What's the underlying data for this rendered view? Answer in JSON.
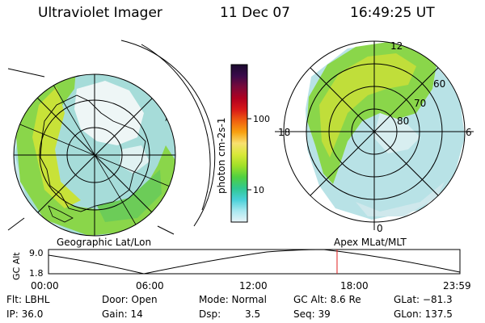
{
  "header": {
    "instrument": "Ultraviolet Imager",
    "date": "11 Dec 07",
    "time": "16:49:25 UT"
  },
  "colorbar": {
    "unit_label": "photon cm-2s-1",
    "ticks": [
      {
        "label": "100",
        "value": 100
      },
      {
        "label": "10",
        "value": 10
      }
    ],
    "colors": [
      "#1a0a2e",
      "#3a0a4a",
      "#7a0a3a",
      "#b00020",
      "#d81818",
      "#f06010",
      "#f8a010",
      "#f8e070",
      "#d8e838",
      "#a0e028",
      "#50d040",
      "#30c890",
      "#48d0d8",
      "#a8e8f0",
      "#e8f4f8"
    ]
  },
  "left_panel": {
    "label": "Geographic Lat/Lon"
  },
  "right_panel": {
    "label": "Apex MLat/MLT",
    "mlt_labels": {
      "top": "12",
      "left": "18",
      "right": "6",
      "bottom": "0"
    },
    "lat_labels": [
      "60",
      "70",
      "80"
    ]
  },
  "altitude_plot": {
    "ylabel": "GC Alt",
    "ymax_label": "9.0",
    "ymin_label": "1.8",
    "x_ticks": [
      "00:00",
      "06:00",
      "12:00",
      "18:00",
      "23:59"
    ],
    "marker_time_hours": 16.82
  },
  "footer": {
    "flt": "Flt: LBHL",
    "ip": "IP: 36.0",
    "door": "Door: Open",
    "gain": "Gain: 14",
    "mode": "Mode: Normal",
    "dsp_label": "Dsp:",
    "dsp_value": "3.5",
    "gc_alt": "GC Alt: 8.6 Re",
    "seq": "Seq: 39",
    "glat": "GLat: −81.3",
    "glon": "GLon: 137.5"
  }
}
